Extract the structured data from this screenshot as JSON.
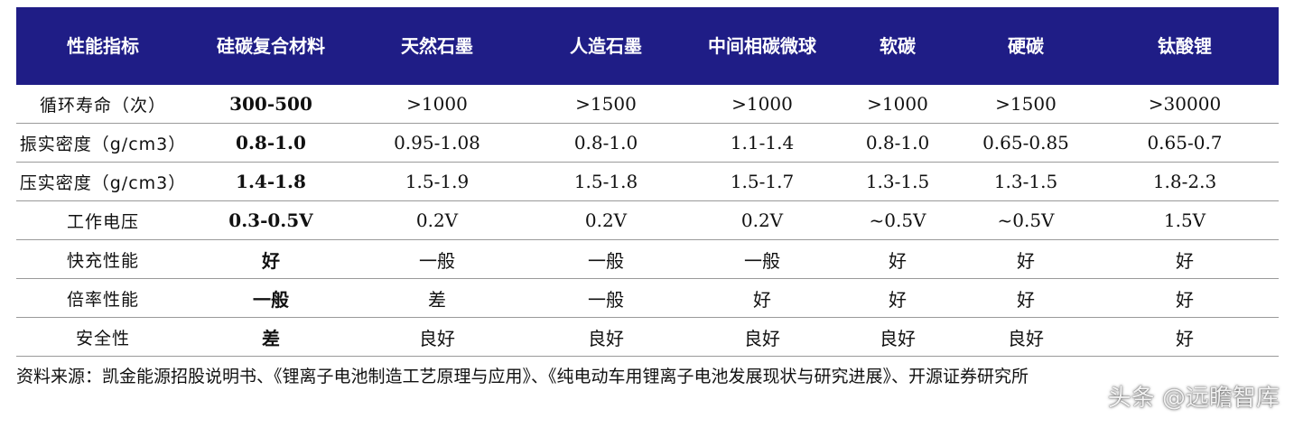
{
  "table": {
    "headers": [
      "性能指标",
      "硅碳复合材料",
      "天然石墨",
      "人造石墨",
      "中间相碳微球",
      "软碳",
      "硬碳",
      "钛酸锂"
    ],
    "rows": [
      [
        "循环寿命（次）",
        "300-500",
        ">1000",
        ">1500",
        ">1000",
        ">1000",
        ">1500",
        ">30000"
      ],
      [
        "振实密度（g/cm3）",
        "0.8-1.0",
        "0.95-1.08",
        "0.8-1.0",
        "1.1-1.4",
        "0.8-1.0",
        "0.65-0.85",
        "0.65-0.7"
      ],
      [
        "压实密度（g/cm3）",
        "1.4-1.8",
        "1.5-1.9",
        "1.5-1.8",
        "1.5-1.7",
        "1.3-1.5",
        "1.3-1.5",
        "1.8-2.3"
      ],
      [
        "工作电压",
        "0.3-0.5V",
        "0.2V",
        "0.2V",
        "0.2V",
        "~0.5V",
        "~0.5V",
        "1.5V"
      ],
      [
        "快充性能",
        "好",
        "一般",
        "一般",
        "一般",
        "好",
        "好",
        "好"
      ],
      [
        "倍率性能",
        "一般",
        "差",
        "一般",
        "好",
        "好",
        "好",
        "好"
      ],
      [
        "安全性",
        "差",
        "良好",
        "良好",
        "良好",
        "良好",
        "良好",
        "好"
      ]
    ]
  },
  "source": "资料来源：凯金能源招股说明书、《锂离子电池制造工艺原理与应用》、《纯电动车用锂离子电池发展现状与研究进展》、开源证券研究所",
  "watermark": "头条 @远瞻智库",
  "colors": {
    "header_bg": "#1f1d86",
    "header_text": "#ffffff"
  }
}
